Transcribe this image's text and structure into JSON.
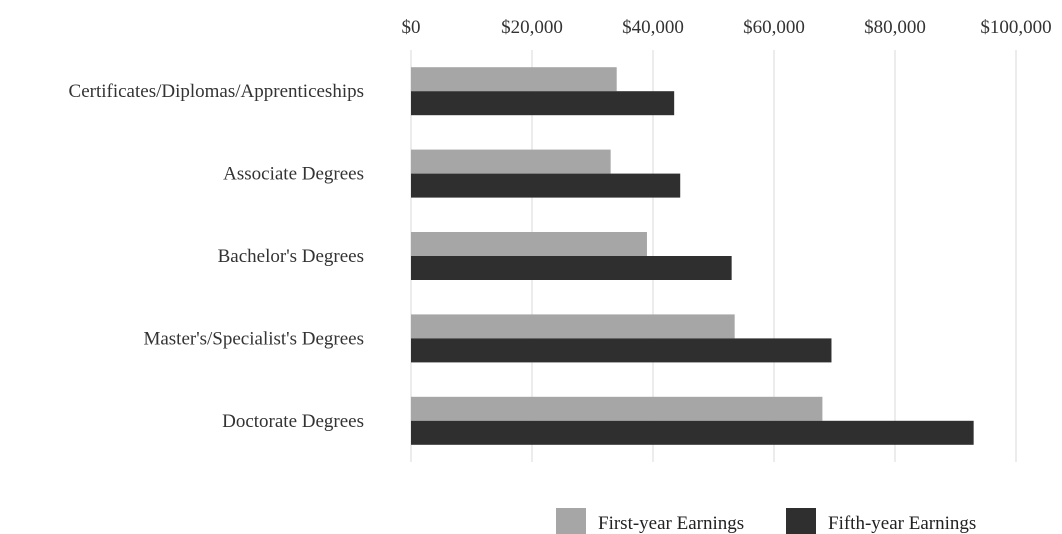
{
  "chart_data": {
    "type": "bar",
    "orientation": "horizontal",
    "categories": [
      "Certificates/Diplomas/Apprenticeships",
      "Associate Degrees",
      "Bachelor's Degrees",
      "Master's/Specialist's Degrees",
      "Doctorate Degrees"
    ],
    "series": [
      {
        "name": "First-year Earnings",
        "color": "#a6a6a6",
        "values": [
          34000,
          33000,
          39000,
          53500,
          68000
        ]
      },
      {
        "name": "Fifth-year Earnings",
        "color": "#2f2f2f",
        "values": [
          43500,
          44500,
          53000,
          69500,
          93000
        ]
      }
    ],
    "xlim": [
      0,
      100000
    ],
    "xticks": [
      0,
      20000,
      40000,
      60000,
      80000,
      100000
    ],
    "xtick_labels": [
      "$0",
      "$20,000",
      "$40,000",
      "$60,000",
      "$80,000",
      "$100,000"
    ],
    "title": "",
    "xlabel": "",
    "ylabel": "",
    "grid": "vertical",
    "legend_position": "bottom-right"
  }
}
